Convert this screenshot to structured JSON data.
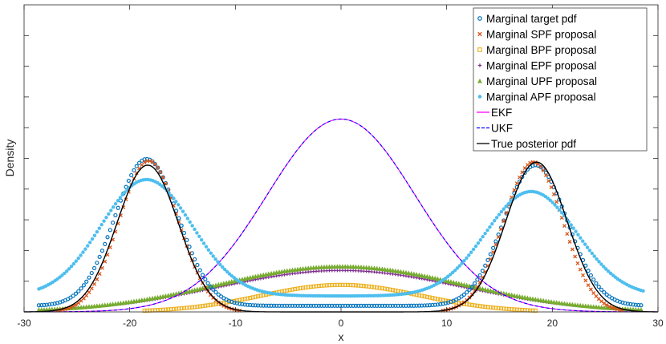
{
  "chart_data": {
    "type": "line",
    "title": "",
    "xlabel": "x",
    "ylabel": "Density",
    "xlim": [
      -30,
      30
    ],
    "ylim": [
      0,
      0.1
    ],
    "xticks": [
      "-30",
      "-20",
      "-10",
      "0",
      "10",
      "20",
      "30"
    ],
    "grid": false,
    "legend_position": "top-right",
    "series": [
      {
        "name": "Marginal target pdf",
        "marker": "circle",
        "color": "#0072BD",
        "components": [
          {
            "mean": -18.4,
            "sd": 3.0,
            "peak": 0.0478
          },
          {
            "mean": 18.4,
            "sd": 3.0,
            "peak": 0.0458
          }
        ],
        "base": 0.002
      },
      {
        "name": "Marginal SPF proposal",
        "marker": "x",
        "color": "#D95319",
        "components": [
          {
            "mean": -18.2,
            "sd": 2.8,
            "peak": 0.0492
          },
          {
            "mean": 18.2,
            "sd": 2.8,
            "peak": 0.0488
          }
        ],
        "base": 0.0
      },
      {
        "name": "Marginal BPF proposal",
        "marker": "square",
        "color": "#EDB120",
        "components": [
          {
            "mean": 0.0,
            "sd": 7.5,
            "peak": 0.0088
          }
        ],
        "base": 0.0
      },
      {
        "name": "Marginal EPF proposal",
        "marker": "plus",
        "color": "#7E2F8E",
        "components": [
          {
            "mean": 0.0,
            "sd": 11.5,
            "peak": 0.0135
          }
        ],
        "base": 0.0
      },
      {
        "name": "Marginal UPF proposal",
        "marker": "triangle",
        "color": "#77AC30",
        "components": [
          {
            "mean": 0.0,
            "sd": 11.5,
            "peak": 0.0148
          }
        ],
        "base": 0.0
      },
      {
        "name": "Marginal APF proposal",
        "marker": "dot",
        "color": "#4DBEEE",
        "components": [
          {
            "mean": -18.4,
            "sd": 4.3,
            "peak": 0.0379
          },
          {
            "mean": 18.0,
            "sd": 4.3,
            "peak": 0.034
          }
        ],
        "base": 0.0052
      },
      {
        "name": "EKF",
        "line": "solid",
        "color": "#FF00FF",
        "components": [
          {
            "mean": 0.0,
            "sd": 7.0,
            "peak": 0.0628
          }
        ],
        "base": 0.0
      },
      {
        "name": "UKF",
        "line": "dashed",
        "color": "#0000FF",
        "components": [
          {
            "mean": 0.0,
            "sd": 7.0,
            "peak": 0.0628
          }
        ],
        "base": 0.0
      },
      {
        "name": "True posterior pdf",
        "line": "solid",
        "color": "#000000",
        "components": [
          {
            "mean": -18.3,
            "sd": 2.9,
            "peak": 0.0478
          },
          {
            "mean": 18.5,
            "sd": 2.9,
            "peak": 0.0488
          }
        ],
        "base": 0.0
      }
    ]
  }
}
